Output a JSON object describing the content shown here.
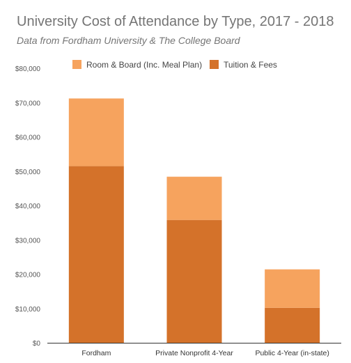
{
  "chart_data": {
    "type": "bar",
    "stacked": true,
    "title": "University Cost of Attendance by Type, 2017 - 2018",
    "subtitle": "Data from Fordham University & The College Board",
    "categories": [
      "Fordham",
      "Private Nonprofit 4-Year",
      "Public 4-Year (in-state)"
    ],
    "series": [
      {
        "name": "Tuition & Fees",
        "values": [
          51500,
          35800,
          10200
        ],
        "color": "#D4722A"
      },
      {
        "name": "Room & Board (Inc. Meal Plan)",
        "values": [
          19700,
          12600,
          11200
        ],
        "color": "#F6A35E"
      }
    ],
    "legend_order": [
      "Room & Board (Inc. Meal Plan)",
      "Tuition & Fees"
    ],
    "legend_position": "top",
    "ylim": [
      0,
      80000
    ],
    "yticks": [
      "$0",
      "$10,000",
      "$20,000",
      "$30,000",
      "$40,000",
      "$50,000",
      "$60,000",
      "$70,000",
      "$80,000"
    ],
    "grid": false
  }
}
